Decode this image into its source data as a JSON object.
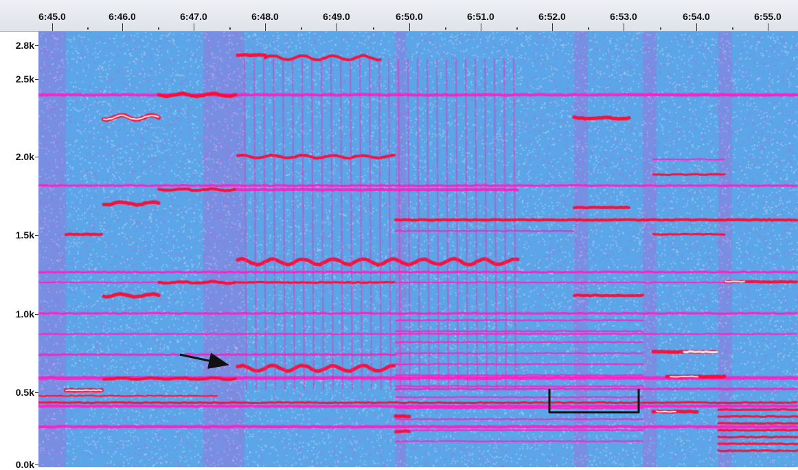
{
  "time_ruler": {
    "labels": [
      "6:45.0",
      "6:46.0",
      "6:47.0",
      "6:48.0",
      "6:49.0",
      "6:50.0",
      "6:51.0",
      "6:52.0",
      "6:53.0",
      "6:54.0",
      "6:55.0"
    ]
  },
  "frequency_axis": {
    "labels": [
      "2.8k",
      "2.5k",
      "2.0k",
      "1.5k",
      "1.0k",
      "0.5k",
      "0.0k"
    ]
  },
  "colors": {
    "background": "#5aa6e8",
    "magenta": "#ff1fc6",
    "red": "#ff0a32",
    "white": "#ffffff",
    "annotation": "#111111"
  }
}
